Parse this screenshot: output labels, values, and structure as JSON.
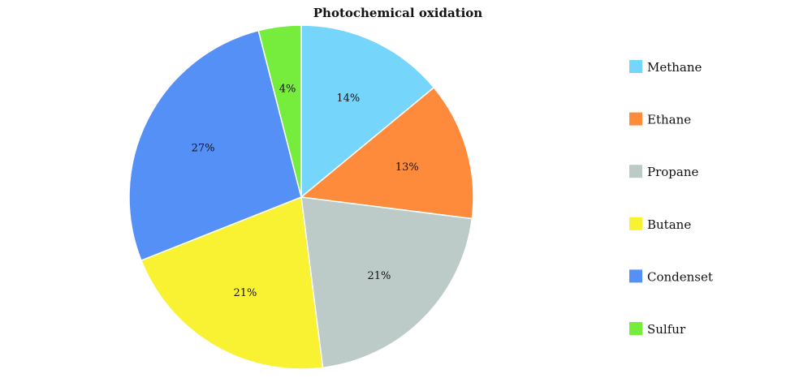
{
  "chart_data": {
    "type": "pie",
    "title": "Photochemical oxidation",
    "start_angle_deg": 0,
    "direction": "clockwise",
    "legend_position": "right",
    "slices": [
      {
        "label": "Methane",
        "value": 14,
        "text": "14%",
        "color": "#76D5FB"
      },
      {
        "label": "Ethane",
        "value": 13,
        "text": "13%",
        "color": "#FE8B3C"
      },
      {
        "label": "Propane",
        "value": 21,
        "text": "21%",
        "color": "#BDCBC8"
      },
      {
        "label": "Butane",
        "value": 21,
        "text": "21%",
        "color": "#F8F233"
      },
      {
        "label": "Condenset",
        "value": 27,
        "text": "27%",
        "color": "#5590F7"
      },
      {
        "label": "Sulfur",
        "value": 4,
        "text": "4%",
        "color": "#76EC3D"
      }
    ]
  }
}
